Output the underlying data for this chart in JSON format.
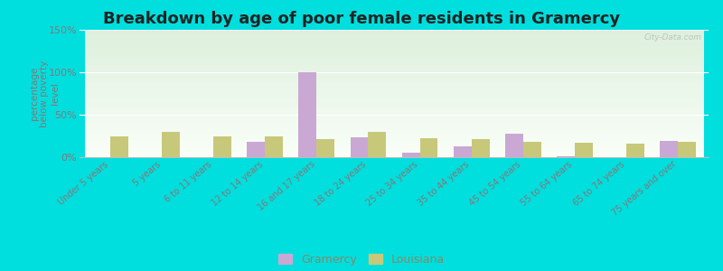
{
  "title": "Breakdown by age of poor female residents in Gramercy",
  "ylabel": "percentage\nbelow poverty\nlevel",
  "categories": [
    "Under 5 years",
    "5 years",
    "6 to 11 years",
    "12 to 14 years",
    "16 and 17 years",
    "18 to 24 years",
    "25 to 34 years",
    "35 to 44 years",
    "45 to 54 years",
    "55 to 64 years",
    "65 to 74 years",
    "75 years and over"
  ],
  "gramercy": [
    0,
    0,
    0,
    18,
    100,
    23,
    5,
    13,
    28,
    1,
    0,
    19
  ],
  "louisiana": [
    24,
    30,
    25,
    25,
    21,
    30,
    22,
    21,
    18,
    17,
    16,
    18
  ],
  "gramercy_color": "#c9a8d4",
  "louisiana_color": "#c8c87a",
  "ylim": [
    0,
    150
  ],
  "yticks": [
    0,
    50,
    100,
    150
  ],
  "ytick_labels": [
    "0%",
    "50%",
    "100%",
    "150%"
  ],
  "background_top": "#ddf0dd",
  "background_bottom": "#fafff8",
  "outer_bg": "#00dede",
  "bar_width": 0.35,
  "title_fontsize": 13,
  "watermark": "City-Data.com",
  "legend_label_color": "#888866"
}
